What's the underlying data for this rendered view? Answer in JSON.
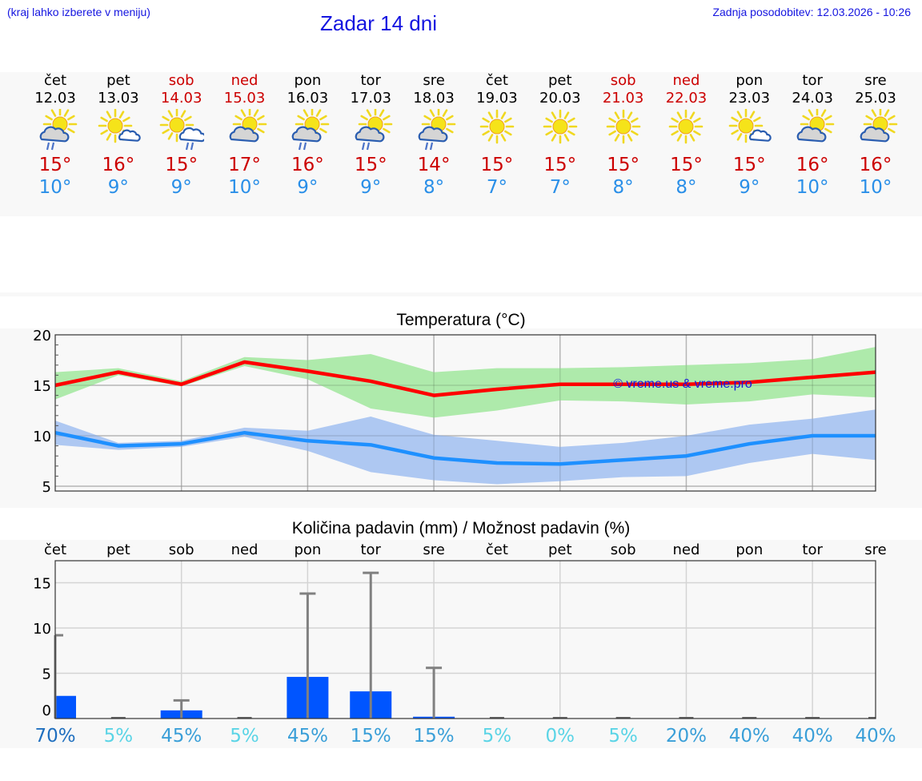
{
  "header": {
    "region_hint": "(kraj lahko izberete v meniju)",
    "title": "Zadar 14 dni",
    "last_update": "Zadnja posodobitev: 12.03.2026 - 10:26"
  },
  "colors": {
    "header_text": "#1515e0",
    "weekday": "#000000",
    "weekend": "#cc0000",
    "tmax": "#cc0000",
    "tmin": "#2a8fe8",
    "max_line": "#ff0000",
    "max_band": "#aeeaab",
    "min_line": "#1e90ff",
    "min_band": "#aec8f2",
    "precip_bar": "#0055ff",
    "precip_whisker": "#808080"
  },
  "days": [
    {
      "name": "čet",
      "date": "12.03",
      "weekend": false,
      "icon": "partly-cloudy-rain-icon",
      "tmax": "15°",
      "tmin": "10°"
    },
    {
      "name": "pet",
      "date": "13.03",
      "weekend": false,
      "icon": "sunny-small-cloud-icon",
      "tmax": "16°",
      "tmin": "9°"
    },
    {
      "name": "sob",
      "date": "14.03",
      "weekend": true,
      "icon": "sun-cloud-rain-icon",
      "tmax": "15°",
      "tmin": "9°"
    },
    {
      "name": "ned",
      "date": "15.03",
      "weekend": true,
      "icon": "partly-cloudy-icon",
      "tmax": "17°",
      "tmin": "10°"
    },
    {
      "name": "pon",
      "date": "16.03",
      "weekend": false,
      "icon": "partly-cloudy-rain-icon",
      "tmax": "16°",
      "tmin": "9°"
    },
    {
      "name": "tor",
      "date": "17.03",
      "weekend": false,
      "icon": "partly-cloudy-rain-icon",
      "tmax": "15°",
      "tmin": "9°"
    },
    {
      "name": "sre",
      "date": "18.03",
      "weekend": false,
      "icon": "partly-cloudy-rain-icon",
      "tmax": "14°",
      "tmin": "8°"
    },
    {
      "name": "čet",
      "date": "19.03",
      "weekend": false,
      "icon": "sunny-icon",
      "tmax": "15°",
      "tmin": "7°"
    },
    {
      "name": "pet",
      "date": "20.03",
      "weekend": false,
      "icon": "sunny-icon",
      "tmax": "15°",
      "tmin": "7°"
    },
    {
      "name": "sob",
      "date": "21.03",
      "weekend": true,
      "icon": "sunny-icon",
      "tmax": "15°",
      "tmin": "8°"
    },
    {
      "name": "ned",
      "date": "22.03",
      "weekend": true,
      "icon": "sunny-icon",
      "tmax": "15°",
      "tmin": "8°"
    },
    {
      "name": "pon",
      "date": "23.03",
      "weekend": false,
      "icon": "sunny-small-cloud-icon",
      "tmax": "15°",
      "tmin": "9°"
    },
    {
      "name": "tor",
      "date": "24.03",
      "weekend": false,
      "icon": "partly-cloudy-icon",
      "tmax": "16°",
      "tmin": "10°"
    },
    {
      "name": "sre",
      "date": "25.03",
      "weekend": false,
      "icon": "partly-cloudy-icon",
      "tmax": "16°",
      "tmin": "10°"
    }
  ],
  "chart_data": [
    {
      "type": "line",
      "title": "Temperatura (°C)",
      "xlabel": "",
      "ylabel": "",
      "ylim": [
        5,
        20
      ],
      "yticks": [
        5,
        10,
        15,
        20
      ],
      "grid": true,
      "categories": [
        "12.03",
        "13.03",
        "14.03",
        "15.03",
        "16.03",
        "17.03",
        "18.03",
        "19.03",
        "20.03",
        "21.03",
        "22.03",
        "23.03",
        "24.03",
        "25.03"
      ],
      "watermark": "© vreme.us & vreme.pro",
      "series": [
        {
          "name": "max",
          "values": [
            15.0,
            16.3,
            15.1,
            17.3,
            16.4,
            15.4,
            14.0,
            14.6,
            15.1,
            15.1,
            15.1,
            15.3,
            15.8,
            16.3
          ]
        },
        {
          "name": "max_band_upper",
          "values": [
            16.3,
            16.7,
            15.4,
            17.8,
            17.5,
            18.1,
            16.3,
            16.7,
            16.7,
            16.8,
            17.0,
            17.2,
            17.6,
            18.8
          ]
        },
        {
          "name": "max_band_lower",
          "values": [
            13.6,
            16.0,
            14.9,
            16.9,
            15.6,
            12.7,
            11.8,
            12.5,
            13.5,
            13.4,
            13.1,
            13.4,
            14.1,
            13.8
          ]
        },
        {
          "name": "min",
          "values": [
            10.3,
            9.0,
            9.2,
            10.3,
            9.5,
            9.1,
            7.8,
            7.3,
            7.2,
            7.6,
            8.0,
            9.2,
            10.0,
            10.0
          ]
        },
        {
          "name": "min_band_upper",
          "values": [
            11.5,
            9.3,
            9.5,
            10.8,
            10.5,
            11.9,
            10.1,
            9.5,
            8.9,
            9.3,
            10.0,
            11.1,
            11.7,
            12.6
          ]
        },
        {
          "name": "min_band_lower",
          "values": [
            9.1,
            8.6,
            8.9,
            9.9,
            8.5,
            6.4,
            5.6,
            5.2,
            5.5,
            5.9,
            6.0,
            7.3,
            8.2,
            7.6
          ]
        }
      ]
    },
    {
      "type": "bar",
      "title": "Količina padavin (mm) / Možnost padavin (%)",
      "xlabel": "",
      "ylabel": "",
      "ylim": [
        0,
        17.5
      ],
      "yticks": [
        0,
        5,
        10,
        15
      ],
      "grid": true,
      "categories": [
        "čet",
        "pet",
        "sob",
        "ned",
        "pon",
        "tor",
        "sre",
        "čet",
        "pet",
        "sob",
        "ned",
        "pon",
        "tor",
        "sre"
      ],
      "series": [
        {
          "name": "amount_mm",
          "values": [
            2.5,
            0,
            0.9,
            0,
            4.6,
            3.0,
            0.2,
            0,
            0,
            0,
            0,
            0,
            0,
            0
          ]
        },
        {
          "name": "max_mm",
          "values": [
            9.2,
            0,
            2.0,
            0,
            13.8,
            16.1,
            5.6,
            0,
            0,
            0,
            0,
            0,
            0,
            0
          ]
        }
      ],
      "probability": [
        "70%",
        "5%",
        "45%",
        "5%",
        "45%",
        "15%",
        "15%",
        "5%",
        "0%",
        "5%",
        "20%",
        "40%",
        "40%",
        "40%"
      ],
      "probability_colors": [
        "#1f6fbf",
        "#5ad4e6",
        "#3a9fd8",
        "#5ad4e6",
        "#3a9fd8",
        "#3a9fd8",
        "#3a9fd8",
        "#5ad4e6",
        "#5ad4e6",
        "#5ad4e6",
        "#3a9fd8",
        "#3a9fd8",
        "#3a9fd8",
        "#3a9fd8"
      ]
    }
  ]
}
